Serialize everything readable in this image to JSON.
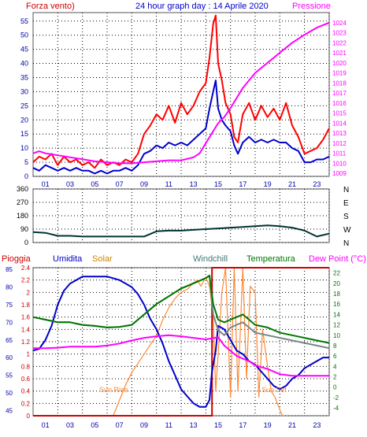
{
  "colors": {
    "red": "#ff0000",
    "blue": "#0000cc",
    "magenta": "#ff00ff",
    "green": "#007700",
    "orange": "#ff8833",
    "gray": "#778888",
    "darkteal": "#003333",
    "darkred": "#cc0000"
  },
  "headers": {
    "wind": "Forza vento)",
    "title": "24 hour graph day : 14 Aprile 2020",
    "pressure": "Pressione",
    "rain": "Pioggia",
    "humidity": "Umidita",
    "solar": "Solar",
    "windchill": "Windchill",
    "temperature": "Temperatura",
    "dewpoint": "Dew Point (°C)"
  },
  "annotations": {
    "sunrise": "Sun Rise",
    "sunset": "Sun Set"
  },
  "chart_data": [
    {
      "type": "line",
      "name": "wind-pressure",
      "grid": true,
      "x_ticks": [
        "01",
        "03",
        "05",
        "07",
        "09",
        "11",
        "13",
        "15",
        "17",
        "19",
        "21",
        "23"
      ],
      "xlim": [
        0,
        24
      ],
      "ylim": [
        0,
        58
      ],
      "y_ticks": [
        0,
        5,
        10,
        15,
        20,
        25,
        30,
        35,
        40,
        45,
        50,
        55
      ],
      "y2lim": [
        1008.7,
        1025.0
      ],
      "y2_ticks": [
        1009,
        1010,
        1011,
        1012,
        1013,
        1014,
        1015,
        1016,
        1017,
        1018,
        1019,
        1020,
        1021,
        1022,
        1023,
        1024
      ],
      "wind_gust": {
        "x": [
          0,
          0.5,
          1,
          1.5,
          2,
          2.5,
          3,
          3.5,
          4,
          4.5,
          5,
          5.5,
          6,
          6.5,
          7,
          7.5,
          8,
          8.5,
          9,
          9.5,
          10,
          10.5,
          11,
          11.5,
          12,
          12.5,
          13,
          13.5,
          14,
          14.3,
          14.6,
          14.8,
          15,
          15.3,
          15.6,
          16,
          16.3,
          16.6,
          17,
          17.5,
          18,
          18.5,
          19,
          19.5,
          20,
          20.5,
          21,
          21.5,
          22,
          22.5,
          23,
          23.5,
          24
        ],
        "values": [
          5,
          7,
          6,
          8,
          4,
          7,
          5,
          6,
          4,
          5,
          3,
          6,
          4,
          5,
          4,
          6,
          5,
          8,
          15,
          18,
          22,
          20,
          25,
          19,
          26,
          22,
          25,
          30,
          33,
          42,
          54,
          57,
          40,
          34,
          26,
          22,
          14,
          12,
          22,
          26,
          20,
          25,
          21,
          24,
          20,
          26,
          18,
          14,
          8,
          9,
          10,
          13,
          17
        ]
      },
      "wind_avg": {
        "x": [
          0,
          0.5,
          1,
          1.5,
          2,
          2.5,
          3,
          3.5,
          4,
          4.5,
          5,
          5.5,
          6,
          6.5,
          7,
          7.5,
          8,
          8.5,
          9,
          9.5,
          10,
          10.5,
          11,
          11.5,
          12,
          12.5,
          13,
          13.5,
          14,
          14.3,
          14.6,
          14.8,
          15,
          15.3,
          15.6,
          16,
          16.3,
          16.6,
          17,
          17.5,
          18,
          18.5,
          19,
          19.5,
          20,
          20.5,
          21,
          21.5,
          22,
          22.5,
          23,
          23.5,
          24
        ],
        "values": [
          3,
          2,
          4,
          3,
          2,
          3,
          2,
          3,
          2,
          2,
          1,
          2,
          1,
          2,
          2,
          3,
          2,
          4,
          8,
          9,
          11,
          10,
          12,
          11,
          12,
          11,
          13,
          15,
          17,
          24,
          30,
          34,
          24,
          20,
          18,
          16,
          11,
          8,
          12,
          14,
          12,
          13,
          12,
          13,
          12,
          12,
          10,
          9,
          5,
          5,
          6,
          6,
          7
        ]
      },
      "pressure": {
        "x": [
          0,
          0.5,
          1,
          2,
          3,
          4,
          5,
          6,
          7,
          8,
          9,
          10,
          11,
          12,
          13,
          13.5,
          14,
          14.5,
          15,
          15.5,
          16,
          16.5,
          17,
          18,
          19,
          20,
          21,
          22,
          23,
          24
        ],
        "values": [
          1011.0,
          1011.2,
          1011.0,
          1010.8,
          1010.6,
          1010.4,
          1010.2,
          1010.1,
          1010.0,
          1010.0,
          1010.1,
          1010.2,
          1010.3,
          1010.3,
          1010.6,
          1011.0,
          1012.0,
          1013.0,
          1014.0,
          1014.6,
          1015.5,
          1016.5,
          1017.5,
          1019.0,
          1020.0,
          1021.0,
          1022.0,
          1022.8,
          1023.5,
          1024.0
        ]
      }
    },
    {
      "type": "line",
      "name": "wind-direction",
      "grid": true,
      "xlim": [
        0,
        24
      ],
      "ylim": [
        0,
        360
      ],
      "y_ticks": [
        0,
        90,
        180,
        270,
        360
      ],
      "direction_labels": [
        "N",
        "W",
        "S",
        "E",
        "N"
      ],
      "direction": {
        "x": [
          0,
          1,
          2,
          3,
          4,
          5,
          6,
          7,
          8,
          9,
          10,
          11,
          12,
          13,
          14,
          15,
          16,
          17,
          18,
          19,
          20,
          21,
          22,
          23,
          24
        ],
        "values": [
          70,
          65,
          45,
          45,
          40,
          40,
          40,
          40,
          40,
          40,
          75,
          80,
          80,
          85,
          90,
          95,
          100,
          105,
          110,
          115,
          110,
          100,
          80,
          40,
          60
        ]
      }
    },
    {
      "type": "line",
      "name": "rain-humidity-solar-temperature",
      "grid": true,
      "x_ticks": [
        "01",
        "03",
        "05",
        "07",
        "09",
        "11",
        "13",
        "15",
        "17",
        "19",
        "21",
        "23"
      ],
      "xlim": [
        0,
        24
      ],
      "rain_ticks": [
        0,
        0.2,
        0.4,
        0.6,
        0.8,
        1,
        1.2,
        1.4,
        1.6,
        1.8,
        2,
        2.2,
        2.4
      ],
      "humidity_ticks": [
        45,
        50,
        55,
        60,
        65,
        70,
        75,
        80,
        85
      ],
      "humidity_lim": [
        43.5,
        85.5
      ],
      "temperature_ticks": [
        -4,
        -2,
        0,
        2,
        4,
        6,
        8,
        10,
        12,
        14,
        16,
        18,
        20,
        22
      ],
      "temperature_lim": [
        -5.5,
        23.0
      ],
      "rain": {
        "x": [
          0,
          14.5,
          14.5,
          24
        ],
        "values": [
          0,
          0,
          2.4,
          2.4
        ]
      },
      "humidity": {
        "x": [
          0,
          0.5,
          1,
          1.5,
          2,
          2.5,
          3,
          3.5,
          4,
          5,
          6,
          7,
          7.5,
          8,
          8.5,
          9,
          9.5,
          10,
          10.5,
          11,
          11.5,
          12,
          12.5,
          13,
          13.5,
          14,
          14.3,
          14.5,
          14.8,
          15,
          15.5,
          16,
          16.5,
          17,
          17.5,
          18,
          18.5,
          19,
          19.5,
          20,
          20.5,
          21,
          21.5,
          22,
          22.5,
          23,
          23.5,
          24
        ],
        "values": [
          62,
          62.5,
          65,
          69,
          75,
          79,
          81,
          82,
          83,
          83,
          83,
          82,
          81,
          80,
          78,
          75,
          71,
          68,
          64,
          59,
          55,
          51,
          49,
          47,
          46,
          46,
          48,
          56,
          62,
          69,
          68,
          65,
          62,
          61,
          59,
          58,
          56,
          54,
          52,
          51,
          52,
          54,
          55,
          57,
          58,
          59,
          60,
          60
        ]
      },
      "temperature": {
        "x": [
          0,
          1,
          2,
          3,
          4,
          5,
          6,
          7,
          8,
          9,
          10,
          11,
          12,
          13,
          14,
          14.3,
          14.6,
          15,
          15.5,
          16,
          16.5,
          17,
          17.5,
          18,
          19,
          20,
          21,
          22,
          23,
          24
        ],
        "values": [
          13.5,
          13.0,
          12.5,
          12.5,
          12.0,
          11.8,
          11.5,
          11.6,
          12.0,
          14.0,
          16.0,
          17.5,
          19.0,
          20.0,
          21.0,
          21.5,
          16.0,
          13.0,
          12.5,
          13.0,
          13.5,
          14.0,
          13.0,
          12.0,
          11.5,
          10.5,
          10.0,
          9.5,
          9.0,
          8.5
        ]
      },
      "windchill": {
        "x": [
          0,
          1,
          2,
          3,
          4,
          5,
          6,
          7,
          8,
          9,
          10,
          11,
          12,
          13,
          14,
          14.3,
          14.6,
          15,
          15.5,
          16,
          16.5,
          17,
          17.5,
          18,
          19,
          20,
          21,
          22,
          23,
          24
        ],
        "values": [
          13.5,
          13.0,
          12.5,
          12.5,
          12.0,
          11.8,
          11.5,
          11.6,
          12.0,
          14.0,
          16.0,
          17.5,
          19.0,
          20.0,
          21.0,
          21.5,
          14.0,
          11.0,
          10.0,
          11.5,
          12.0,
          12.5,
          11.5,
          10.5,
          10.0,
          9.5,
          9.0,
          8.5,
          8.0,
          7.5
        ]
      },
      "dewpoint": {
        "x": [
          0,
          1,
          2,
          3,
          4,
          5,
          6,
          7,
          8,
          9,
          10,
          11,
          12,
          13,
          14,
          15,
          15.5,
          16,
          16.5,
          17,
          17.5,
          18,
          19,
          20,
          21,
          22,
          23,
          24
        ],
        "values": [
          7.5,
          7.5,
          7.6,
          7.8,
          7.8,
          7.8,
          8.0,
          8.4,
          9.0,
          9.5,
          9.8,
          10.0,
          9.8,
          9.5,
          9.2,
          9.6,
          8.0,
          7.0,
          6.0,
          5.5,
          5.0,
          4.2,
          3.5,
          2.5,
          2.2,
          2.2,
          2.2,
          2.2
        ]
      },
      "solar": {
        "x": [
          6.5,
          7,
          7.5,
          8,
          8.5,
          9,
          9.5,
          10,
          10.5,
          11,
          11.5,
          12,
          12.5,
          13,
          13.3,
          13.6,
          14,
          14.3,
          14.6,
          14.8,
          15,
          15.3,
          15.6,
          16,
          16.3,
          16.6,
          17,
          17.3,
          17.6,
          18,
          18.3,
          18.6,
          19,
          19.3,
          19.6,
          20,
          20.2
        ],
        "values": [
          0,
          0.25,
          0.5,
          0.7,
          0.85,
          1.0,
          1.15,
          1.3,
          1.55,
          1.75,
          1.9,
          2.0,
          2.05,
          2.15,
          2.2,
          2.1,
          2.25,
          2.1,
          1.6,
          0.4,
          1.0,
          2.0,
          2.4,
          0.3,
          2.4,
          0.4,
          2.4,
          0.6,
          2.1,
          2.0,
          0.3,
          1.4,
          0.8,
          0.4,
          0.3,
          0.1,
          0
        ]
      }
    }
  ]
}
